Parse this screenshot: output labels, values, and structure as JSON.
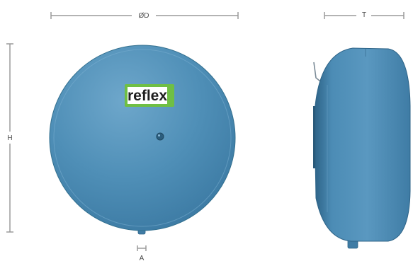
{
  "logo": {
    "brand": "reflex"
  },
  "dimensions": {
    "diameter": "ØD",
    "height": "H",
    "depth": "T",
    "connection": "A"
  },
  "colors": {
    "vessel": "#4f8fb7",
    "vessel_dark": "#2d6387",
    "vessel_light": "#7eb2d3",
    "dimension_line": "#9a9a9a",
    "logo_green": "#6fbf44",
    "logo_white": "#ffffff",
    "label_text": "#4a4a4a"
  }
}
